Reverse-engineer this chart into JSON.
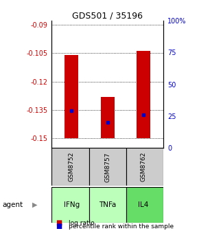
{
  "title": "GDS501 / 35196",
  "samples": [
    "GSM8752",
    "GSM8757",
    "GSM8762"
  ],
  "agents": [
    "IFNg",
    "TNFa",
    "IL4"
  ],
  "log_ratios": [
    -0.106,
    -0.128,
    -0.104
  ],
  "percentile_ranks": [
    29,
    20,
    26
  ],
  "bar_bottom": -0.15,
  "ylim_left": [
    -0.155,
    -0.088
  ],
  "ylim_right": [
    0,
    100
  ],
  "yticks_left": [
    -0.15,
    -0.135,
    -0.12,
    -0.105,
    -0.09
  ],
  "yticks_right": [
    0,
    25,
    50,
    75,
    100
  ],
  "ytick_labels_left": [
    "-0.15",
    "-0.135",
    "-0.12",
    "-0.105",
    "-0.09"
  ],
  "ytick_labels_right": [
    "0",
    "25",
    "50",
    "75",
    "100%"
  ],
  "left_tick_color": "#cc0000",
  "right_tick_color": "#0000cc",
  "bar_color": "#cc0000",
  "dot_color": "#0000cc",
  "agent_colors": [
    "#bbffbb",
    "#bbffbb",
    "#66dd66"
  ],
  "sample_box_color": "#cccccc",
  "agent_label": "agent"
}
